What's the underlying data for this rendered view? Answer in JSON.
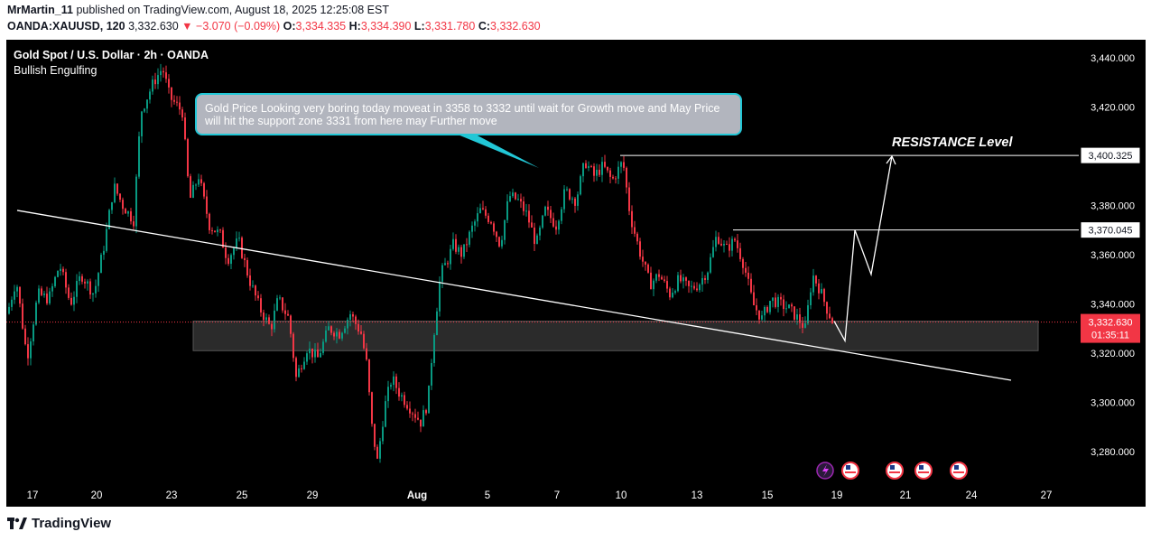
{
  "header": {
    "author": "MrMartin_11",
    "published_text": "published on TradingView.com, August 18, 2025 12:25:08 EST",
    "symbol": "OANDA:XAUUSD, 120",
    "last": "3,332.630",
    "change": "▼ −3.070 (−0.09%)",
    "o_label": "O:",
    "o": "3,334.335",
    "h_label": "H:",
    "h": "3,334.390",
    "l_label": "L:",
    "l": "3,331.780",
    "c_label": "C:",
    "c": "3,332.630"
  },
  "chart": {
    "title": "Gold Spot / U.S. Dollar · 2h · OANDA",
    "indicator": "Bullish Engulfing",
    "callout_text": "Gold Price Looking very boring today moveat in 3358 to 3332 until wait for Growth move and May Price will hit the support zone 3331 from here may Further move",
    "resistance_label": "RESISTANCE Level",
    "price_tags": [
      "3,400.325",
      "3,370.045"
    ],
    "current_price_tag": "3,332.630",
    "countdown": "01:35:11",
    "colors": {
      "up": "#089981",
      "down": "#f23645",
      "bg": "#000000",
      "callout_border": "#22c7d6",
      "zone": "#3a3a3a"
    }
  },
  "chart_data": {
    "type": "candlestick",
    "title": "Gold Spot / U.S. Dollar · 2h · OANDA",
    "ylim": [
      3268,
      3448
    ],
    "y_ticks": [
      "3,440.000",
      "3,420.000",
      "3,400.000",
      "3,380.000",
      "3,360.000",
      "3,340.000",
      "3,320.000",
      "3,300.000",
      "3,280.000"
    ],
    "y_tick_values": [
      3440,
      3420,
      3400,
      3380,
      3360,
      3340,
      3320,
      3300,
      3280
    ],
    "x_ticks": [
      "17",
      "20",
      "23",
      "25",
      "29",
      "Aug",
      "5",
      "7",
      "10",
      "13",
      "15",
      "19",
      "21",
      "24",
      "27"
    ],
    "price_path": [
      [
        0,
        3336
      ],
      [
        10,
        3350
      ],
      [
        22,
        3318
      ],
      [
        34,
        3344
      ],
      [
        46,
        3342
      ],
      [
        58,
        3356
      ],
      [
        70,
        3340
      ],
      [
        82,
        3352
      ],
      [
        96,
        3344
      ],
      [
        108,
        3365
      ],
      [
        118,
        3388
      ],
      [
        128,
        3380
      ],
      [
        140,
        3374
      ],
      [
        148,
        3418
      ],
      [
        162,
        3430
      ],
      [
        172,
        3436
      ],
      [
        180,
        3424
      ],
      [
        194,
        3418
      ],
      [
        202,
        3382
      ],
      [
        212,
        3392
      ],
      [
        224,
        3372
      ],
      [
        236,
        3368
      ],
      [
        244,
        3358
      ],
      [
        256,
        3366
      ],
      [
        268,
        3350
      ],
      [
        280,
        3338
      ],
      [
        292,
        3330
      ],
      [
        300,
        3342
      ],
      [
        312,
        3334
      ],
      [
        320,
        3310
      ],
      [
        332,
        3322
      ],
      [
        344,
        3318
      ],
      [
        356,
        3330
      ],
      [
        368,
        3328
      ],
      [
        380,
        3336
      ],
      [
        392,
        3328
      ],
      [
        398,
        3316
      ],
      [
        404,
        3290
      ],
      [
        410,
        3276
      ],
      [
        418,
        3298
      ],
      [
        426,
        3310
      ],
      [
        434,
        3304
      ],
      [
        446,
        3298
      ],
      [
        458,
        3292
      ],
      [
        466,
        3300
      ],
      [
        472,
        3326
      ],
      [
        480,
        3352
      ],
      [
        488,
        3358
      ],
      [
        494,
        3364
      ],
      [
        504,
        3360
      ],
      [
        514,
        3370
      ],
      [
        524,
        3378
      ],
      [
        536,
        3374
      ],
      [
        546,
        3364
      ],
      [
        556,
        3384
      ],
      [
        566,
        3382
      ],
      [
        576,
        3376
      ],
      [
        586,
        3364
      ],
      [
        596,
        3378
      ],
      [
        608,
        3372
      ],
      [
        618,
        3386
      ],
      [
        630,
        3382
      ],
      [
        640,
        3398
      ],
      [
        650,
        3392
      ],
      [
        660,
        3396
      ],
      [
        670,
        3390
      ],
      [
        682,
        3398
      ],
      [
        690,
        3376
      ],
      [
        700,
        3362
      ],
      [
        712,
        3348
      ],
      [
        722,
        3352
      ],
      [
        734,
        3344
      ],
      [
        744,
        3350
      ],
      [
        756,
        3346
      ],
      [
        766,
        3348
      ],
      [
        776,
        3354
      ],
      [
        786,
        3368
      ],
      [
        796,
        3362
      ],
      [
        806,
        3366
      ],
      [
        816,
        3356
      ],
      [
        826,
        3340
      ],
      [
        836,
        3334
      ],
      [
        846,
        3342
      ],
      [
        856,
        3340
      ],
      [
        866,
        3338
      ],
      [
        876,
        3334
      ],
      [
        884,
        3330
      ],
      [
        892,
        3352
      ],
      [
        900,
        3346
      ],
      [
        908,
        3338
      ],
      [
        914,
        3333
      ]
    ],
    "resistance_levels": [
      3400.325,
      3370.045
    ],
    "support_zone": [
      3321,
      3333
    ],
    "current_price": 3332.63,
    "projection": [
      [
        3333,
        "now"
      ],
      [
        3325,
        ""
      ],
      [
        3370,
        ""
      ],
      [
        3352,
        ""
      ],
      [
        3400,
        ""
      ]
    ],
    "trendline": [
      [
        3378,
        "17"
      ],
      [
        3309,
        "26"
      ]
    ],
    "grid": false,
    "legend": "none"
  }
}
